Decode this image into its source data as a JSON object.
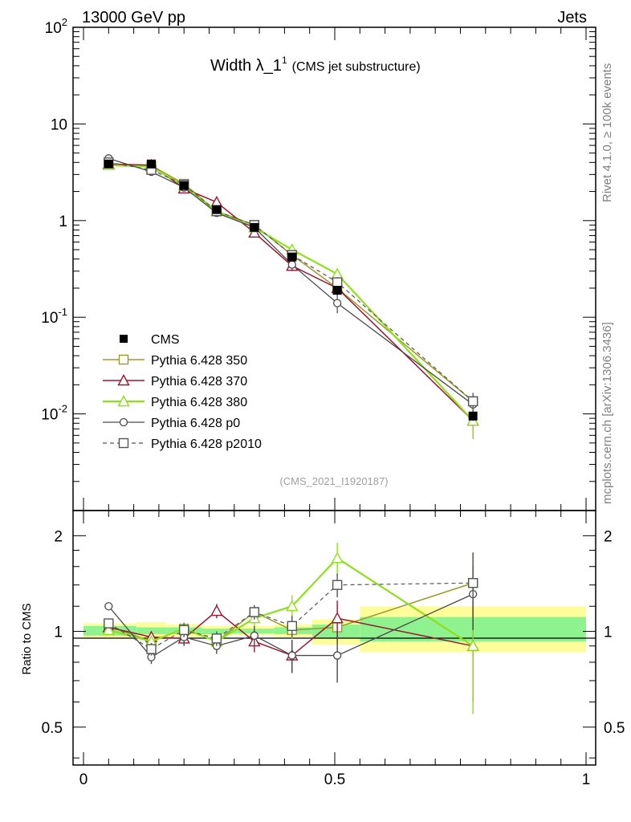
{
  "header": {
    "left_label": "13000 GeV pp",
    "right_label": "Jets"
  },
  "title": {
    "main": "Width λ_1",
    "superscript": "1",
    "note": "(CMS jet substructure)"
  },
  "side_labels": {
    "rivet": "Rivet 4.1.0, ≥ 100k events",
    "mcplots": "mcplots.cern.ch [arXiv:1306.3436]"
  },
  "analysis_id": "(CMS_2021_I1920187)",
  "ratio_ylabel": "Ratio to CMS",
  "colors": {
    "data": "#000000",
    "p350": "#9a9a2a",
    "p370": "#9b1530",
    "p380": "#8fe01a",
    "p0": "#4a4a4a",
    "p2010": "#555555",
    "band_inner": "#8ef28e",
    "band_outer": "#fdfd9a"
  },
  "chart_data": {
    "type": "line",
    "main_panel": {
      "yscale": "log",
      "ylim": [
        0.001,
        100
      ],
      "xlim": [
        0,
        1
      ],
      "y_tick_labels": [
        "10^-2",
        "10^-1",
        "1",
        "10",
        "10^2"
      ],
      "x": [
        0.05,
        0.135,
        0.2,
        0.265,
        0.34,
        0.415,
        0.505,
        0.775
      ],
      "series": [
        {
          "name": "CMS",
          "key": "data",
          "marker": "filled-square",
          "values": [
            3.85,
            3.85,
            2.3,
            1.3,
            0.85,
            0.42,
            0.19,
            0.0095
          ],
          "errors": [
            0.15,
            0.15,
            0.1,
            0.06,
            0.04,
            0.03,
            0.02,
            0.001
          ]
        },
        {
          "name": "Pythia 6.428 350",
          "key": "p350",
          "marker": "open-square",
          "values": [
            3.85,
            3.7,
            2.4,
            1.25,
            0.9,
            0.44,
            0.2,
            0.0135
          ],
          "errors": [
            0.1,
            0.1,
            0.08,
            0.05,
            0.04,
            0.03,
            0.03,
            0.003
          ]
        },
        {
          "name": "Pythia 6.428 370",
          "key": "p370",
          "marker": "open-triangle",
          "values": [
            3.85,
            3.75,
            2.15,
            1.55,
            0.75,
            0.34,
            0.2,
            0.0085
          ],
          "errors": [
            0.1,
            0.1,
            0.08,
            0.07,
            0.05,
            0.04,
            0.03,
            0.003
          ]
        },
        {
          "name": "Pythia 6.428 380",
          "key": "p380",
          "marker": "open-triangle",
          "values": [
            3.75,
            3.6,
            2.3,
            1.25,
            0.85,
            0.5,
            0.28,
            0.0085
          ],
          "errors": [
            0.1,
            0.1,
            0.08,
            0.05,
            0.04,
            0.04,
            0.04,
            0.003
          ]
        },
        {
          "name": "Pythia 6.428 p0",
          "key": "p0",
          "marker": "open-circle",
          "values": [
            4.4,
            3.2,
            2.2,
            1.2,
            0.85,
            0.35,
            0.14,
            0.0125
          ],
          "errors": [
            0.1,
            0.1,
            0.08,
            0.05,
            0.05,
            0.04,
            0.03,
            0.003
          ]
        },
        {
          "name": "Pythia 6.428 p2010",
          "key": "p2010",
          "marker": "open-square",
          "dashed": true,
          "values": [
            4.0,
            3.35,
            2.35,
            1.25,
            0.9,
            0.44,
            0.23,
            0.0135
          ],
          "errors": [
            0.1,
            0.1,
            0.08,
            0.05,
            0.04,
            0.03,
            0.03,
            0.003
          ]
        }
      ]
    },
    "ratio_panel": {
      "ylabel": "Ratio to CMS",
      "yscale": "log",
      "ylim": [
        0.38,
        2.4
      ],
      "y_tick_labels": [
        "0.5",
        "1",
        "2"
      ],
      "x_tick_labels": [
        "0",
        "0.5",
        "1"
      ],
      "bands": [
        {
          "x0": 0.0,
          "x1": 0.105,
          "inner": [
            0.97,
            1.04
          ],
          "outer": [
            0.95,
            1.06
          ]
        },
        {
          "x0": 0.105,
          "x1": 0.165,
          "inner": [
            0.98,
            1.03
          ],
          "outer": [
            0.95,
            1.07
          ]
        },
        {
          "x0": 0.165,
          "x1": 0.235,
          "inner": [
            0.98,
            1.03
          ],
          "outer": [
            0.96,
            1.05
          ]
        },
        {
          "x0": 0.235,
          "x1": 0.295,
          "inner": [
            0.98,
            1.02
          ],
          "outer": [
            0.97,
            1.04
          ]
        },
        {
          "x0": 0.295,
          "x1": 0.38,
          "inner": [
            0.985,
            1.02
          ],
          "outer": [
            0.97,
            1.04
          ]
        },
        {
          "x0": 0.38,
          "x1": 0.455,
          "inner": [
            0.98,
            1.03
          ],
          "outer": [
            0.96,
            1.05
          ]
        },
        {
          "x0": 0.455,
          "x1": 0.55,
          "inner": [
            0.95,
            1.05
          ],
          "outer": [
            0.91,
            1.09
          ]
        },
        {
          "x0": 0.55,
          "x1": 1.0,
          "inner": [
            0.93,
            1.11
          ],
          "outer": [
            0.86,
            1.2
          ]
        }
      ],
      "series": [
        {
          "key": "data",
          "values": [
            1,
            1,
            1,
            1,
            1,
            1,
            1,
            1
          ],
          "errors": [
            0.04,
            0.04,
            0.04,
            0.05,
            0.05,
            0.07,
            0.1,
            0.1
          ]
        },
        {
          "key": "p350",
          "values": [
            1.04,
            0.93,
            1.02,
            0.93,
            1.15,
            1.01,
            1.03,
            1.42
          ],
          "errors": [
            0.03,
            0.04,
            0.04,
            0.05,
            0.05,
            0.06,
            0.1,
            0.35
          ]
        },
        {
          "key": "p370",
          "values": [
            1.03,
            0.96,
            0.95,
            1.16,
            0.93,
            0.84,
            1.1,
            0.9
          ],
          "errors": [
            0.03,
            0.04,
            0.05,
            0.06,
            0.07,
            0.1,
            0.15,
            0.3
          ]
        },
        {
          "key": "p380",
          "values": [
            1.01,
            0.93,
            1.02,
            0.93,
            1.1,
            1.2,
            1.7,
            0.9
          ],
          "errors": [
            0.03,
            0.04,
            0.05,
            0.05,
            0.06,
            0.1,
            0.2,
            0.35
          ]
        },
        {
          "key": "p0",
          "values": [
            1.2,
            0.83,
            0.96,
            0.9,
            0.97,
            0.84,
            0.84,
            1.31
          ],
          "errors": [
            0.03,
            0.04,
            0.05,
            0.05,
            0.07,
            0.1,
            0.15,
            0.3
          ]
        },
        {
          "key": "p2010",
          "values": [
            1.06,
            0.88,
            1.01,
            0.95,
            1.15,
            1.04,
            1.4,
            1.42
          ],
          "errors": [
            0.03,
            0.04,
            0.05,
            0.05,
            0.06,
            0.08,
            0.12,
            0.35
          ]
        }
      ]
    }
  }
}
